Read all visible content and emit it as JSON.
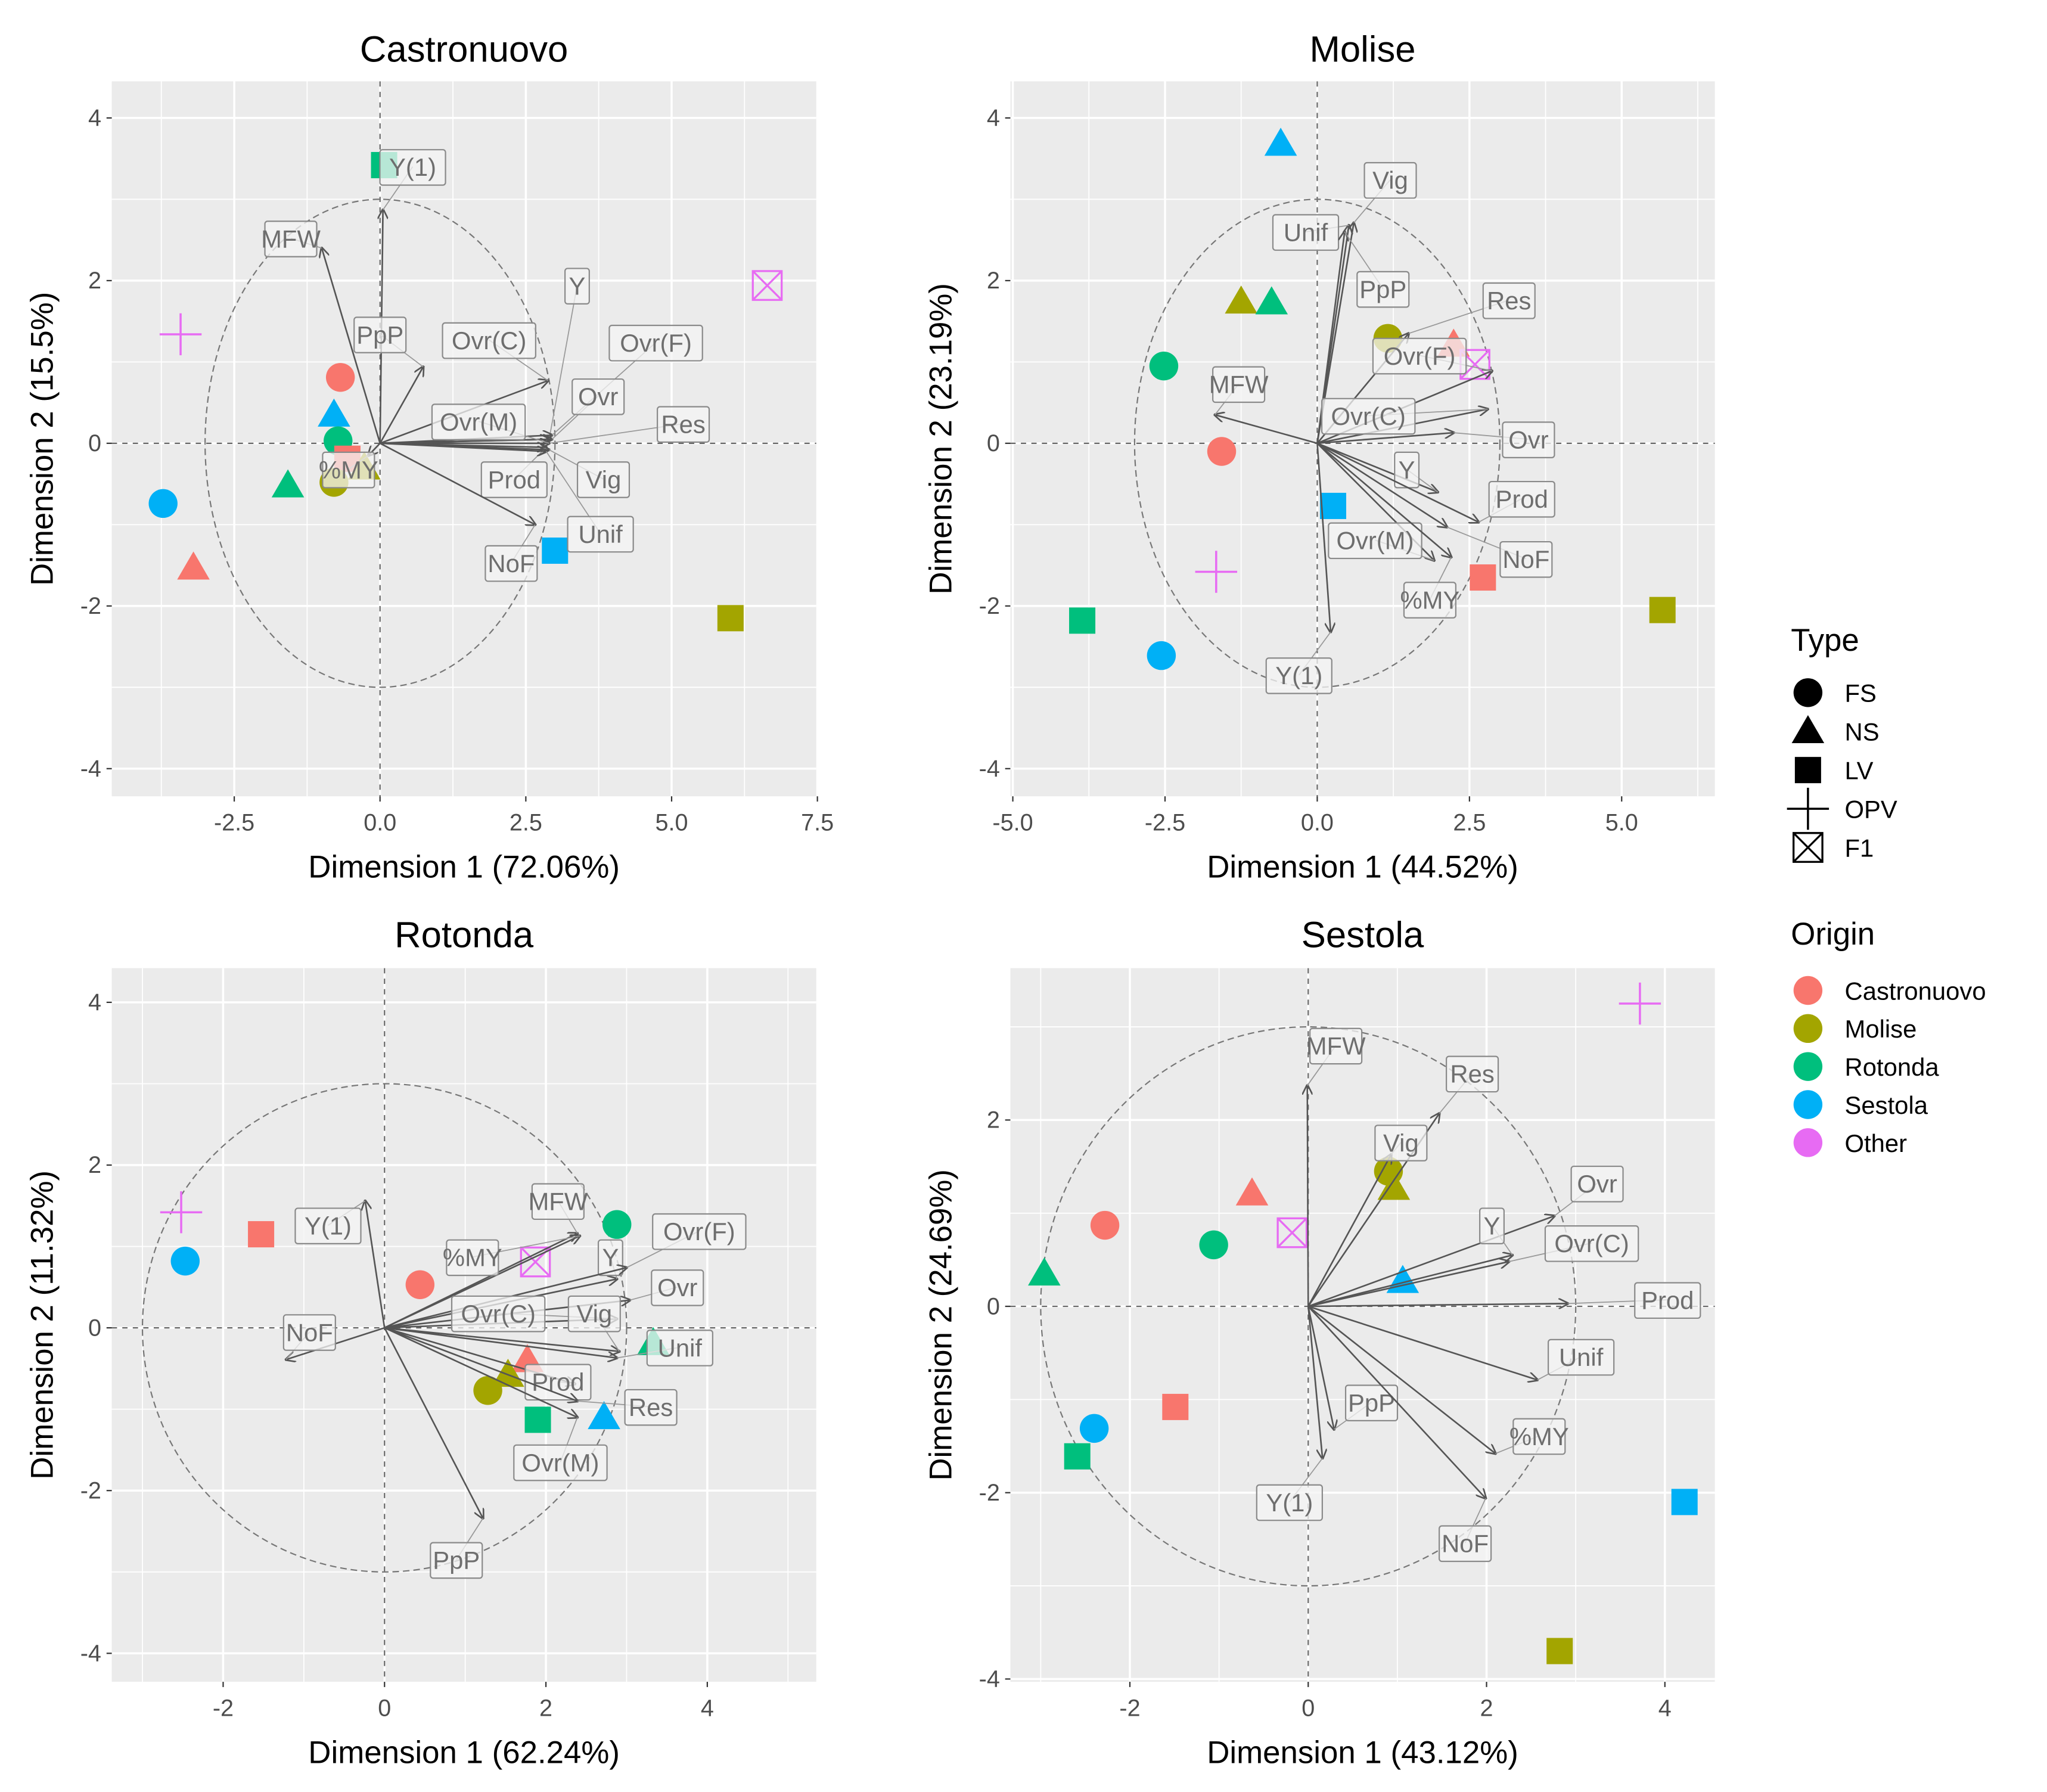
{
  "colors": {
    "Castronuovo": "#F8766D",
    "Molise": "#A3A500",
    "Rotonda": "#00BF7D",
    "Sestola": "#00B0F6",
    "Other": "#E76BF3"
  },
  "legend": {
    "type_title": "Type",
    "types": [
      "FS",
      "NS",
      "LV",
      "OPV",
      "F1"
    ],
    "origin_title": "Origin",
    "origins": [
      "Castronuovo",
      "Molise",
      "Rotonda",
      "Sestola",
      "Other"
    ]
  },
  "chart_data": [
    {
      "type": "scatter",
      "title": "Castronuovo",
      "xlabel": "Dimension 1 (72.06%)",
      "ylabel": "Dimension 2 (15.5%)",
      "xlim": [
        -4.6,
        7.48
      ],
      "ylim": [
        -4.34,
        4.45
      ],
      "x_ticks": [
        -2.5,
        0,
        2.5,
        5,
        7.5
      ],
      "x_tick_labels": [
        "-2.5",
        "0.0",
        "2.5",
        "5.0",
        "7.5"
      ],
      "y_ticks": [
        -4,
        -2,
        0,
        2,
        4
      ],
      "y_tick_labels": [
        "-4",
        "-2",
        "0",
        "2",
        "4"
      ],
      "circle_radius": 3,
      "points": [
        {
          "origin": "Castronuovo",
          "type": "FS",
          "x": -0.68,
          "y": 0.81
        },
        {
          "origin": "Sestola",
          "type": "NS",
          "x": -0.79,
          "y": 0.35
        },
        {
          "origin": "Rotonda",
          "type": "FS",
          "x": -0.72,
          "y": 0.03
        },
        {
          "origin": "Castronuovo",
          "type": "LV",
          "x": -0.56,
          "y": -0.19
        },
        {
          "origin": "Molise",
          "type": "NS",
          "x": -0.27,
          "y": -0.3
        },
        {
          "origin": "Molise",
          "type": "FS",
          "x": -0.79,
          "y": -0.48
        },
        {
          "origin": "Rotonda",
          "type": "NS",
          "x": -1.58,
          "y": -0.52
        },
        {
          "origin": "Sestola",
          "type": "FS",
          "x": -3.72,
          "y": -0.74
        },
        {
          "origin": "Castronuovo",
          "type": "NS",
          "x": -3.2,
          "y": -1.53
        },
        {
          "origin": "Other",
          "type": "OPV",
          "x": -3.42,
          "y": 1.34
        },
        {
          "origin": "Other",
          "type": "F1",
          "x": 6.64,
          "y": 1.94
        },
        {
          "origin": "Rotonda",
          "type": "LV",
          "x": 0.07,
          "y": 3.42
        },
        {
          "origin": "Sestola",
          "type": "LV",
          "x": 3.0,
          "y": -1.32
        },
        {
          "origin": "Molise",
          "type": "LV",
          "x": 6.01,
          "y": -2.15
        }
      ],
      "vectors": [
        {
          "label": "Y(1)",
          "x": 0.05,
          "y": 2.87,
          "label_x": 0.56,
          "label_y": 3.4
        },
        {
          "label": "MFW",
          "x": -1.0,
          "y": 2.4,
          "label_x": -1.53,
          "label_y": 2.52
        },
        {
          "label": "PpP",
          "x": 0.74,
          "y": 0.94,
          "label_x": 0.0,
          "label_y": 1.34
        },
        {
          "label": "Ovr(C)",
          "x": 2.88,
          "y": 0.77,
          "label_x": 1.87,
          "label_y": 1.27
        },
        {
          "label": "Y",
          "x": 2.9,
          "y": 0.05,
          "label_x": 3.38,
          "label_y": 1.94
        },
        {
          "label": "Ovr(F)",
          "x": 2.95,
          "y": 0.1,
          "label_x": 4.73,
          "label_y": 1.24
        },
        {
          "label": "Ovr",
          "x": 2.95,
          "y": 0.05,
          "label_x": 3.74,
          "label_y": 0.58
        },
        {
          "label": "Res",
          "x": 2.9,
          "y": 0.0,
          "label_x": 5.2,
          "label_y": 0.24
        },
        {
          "label": "Ovr(M)",
          "x": 2.9,
          "y": 0.0,
          "label_x": 1.69,
          "label_y": 0.27
        },
        {
          "label": "Prod",
          "x": 2.85,
          "y": -0.05,
          "label_x": 2.3,
          "label_y": -0.44
        },
        {
          "label": "Vig",
          "x": 2.9,
          "y": -0.08,
          "label_x": 3.83,
          "label_y": -0.44
        },
        {
          "label": "Unif",
          "x": 2.85,
          "y": -0.1,
          "label_x": 3.78,
          "label_y": -1.11
        },
        {
          "label": "NoF",
          "x": 2.66,
          "y": -1.0,
          "label_x": 2.25,
          "label_y": -1.47
        },
        {
          "label": "%MY",
          "x": -0.2,
          "y": -0.15,
          "label_x": -0.54,
          "label_y": -0.32
        }
      ]
    },
    {
      "type": "scatter",
      "title": "Molise",
      "xlabel": "Dimension 1 (44.52%)",
      "ylabel": "Dimension 2 (23.19%)",
      "xlim": [
        -5.04,
        6.53
      ],
      "ylim": [
        -4.34,
        4.45
      ],
      "x_ticks": [
        -5,
        -2.5,
        0,
        2.5,
        5
      ],
      "x_tick_labels": [
        "-5.0",
        "-2.5",
        "0.0",
        "2.5",
        "5.0"
      ],
      "y_ticks": [
        -4,
        -2,
        0,
        2,
        4
      ],
      "y_tick_labels": [
        "-4",
        "-2",
        "0",
        "2",
        "4"
      ],
      "circle_radius": 3,
      "points": [
        {
          "origin": "Sestola",
          "type": "NS",
          "x": -0.6,
          "y": 3.68
        },
        {
          "origin": "Molise",
          "type": "NS",
          "x": -1.25,
          "y": 1.74
        },
        {
          "origin": "Rotonda",
          "type": "NS",
          "x": -0.75,
          "y": 1.73
        },
        {
          "origin": "Rotonda",
          "type": "FS",
          "x": -2.52,
          "y": 0.95
        },
        {
          "origin": "Molise",
          "type": "FS",
          "x": 1.16,
          "y": 1.29
        },
        {
          "origin": "Castronuovo",
          "type": "NS",
          "x": 2.24,
          "y": 1.21
        },
        {
          "origin": "Other",
          "type": "F1",
          "x": 2.59,
          "y": 0.97
        },
        {
          "origin": "Castronuovo",
          "type": "FS",
          "x": -1.57,
          "y": -0.1
        },
        {
          "origin": "Sestola",
          "type": "LV",
          "x": 0.26,
          "y": -0.77
        },
        {
          "origin": "Other",
          "type": "OPV",
          "x": -1.66,
          "y": -1.58
        },
        {
          "origin": "Castronuovo",
          "type": "LV",
          "x": 2.72,
          "y": -1.65
        },
        {
          "origin": "Molise",
          "type": "LV",
          "x": 5.67,
          "y": -2.05
        },
        {
          "origin": "Rotonda",
          "type": "LV",
          "x": -3.86,
          "y": -2.18
        },
        {
          "origin": "Sestola",
          "type": "FS",
          "x": -2.56,
          "y": -2.61
        }
      ],
      "vectors": [
        {
          "label": "Vig",
          "x": 0.6,
          "y": 2.71,
          "label_x": 1.2,
          "label_y": 3.24
        },
        {
          "label": "Unif",
          "x": 0.52,
          "y": 2.68,
          "label_x": -0.19,
          "label_y": 2.6
        },
        {
          "label": "PpP",
          "x": 0.45,
          "y": 2.6,
          "label_x": 1.08,
          "label_y": 1.9
        },
        {
          "label": "Res",
          "x": 1.5,
          "y": 1.35,
          "label_x": 3.15,
          "label_y": 1.76
        },
        {
          "label": "Ovr(F)",
          "x": 2.87,
          "y": 0.89,
          "label_x": 1.68,
          "label_y": 1.08
        },
        {
          "label": "Ovr(C)",
          "x": 2.8,
          "y": 0.42,
          "label_x": 0.84,
          "label_y": 0.34
        },
        {
          "label": "Ovr",
          "x": 2.24,
          "y": 0.13,
          "label_x": 3.47,
          "label_y": 0.05
        },
        {
          "label": "Y",
          "x": 1.98,
          "y": -0.6,
          "label_x": 1.47,
          "label_y": -0.32
        },
        {
          "label": "Prod",
          "x": 2.65,
          "y": -0.97,
          "label_x": 3.36,
          "label_y": -0.68
        },
        {
          "label": "Ovr(M)",
          "x": 1.92,
          "y": -1.44,
          "label_x": 0.95,
          "label_y": -1.19
        },
        {
          "label": "NoF",
          "x": 2.13,
          "y": -1.03,
          "label_x": 3.43,
          "label_y": -1.42
        },
        {
          "label": "%MY",
          "x": 2.2,
          "y": -1.4,
          "label_x": 1.85,
          "label_y": -1.92
        },
        {
          "label": "MFW",
          "x": -1.68,
          "y": 0.35,
          "label_x": -1.29,
          "label_y": 0.73
        },
        {
          "label": "Y(1)",
          "x": 0.22,
          "y": -2.32,
          "label_x": -0.3,
          "label_y": -2.85
        }
      ]
    },
    {
      "type": "scatter",
      "title": "Rotonda",
      "xlabel": "Dimension 1 (62.24%)",
      "ylabel": "Dimension 2 (11.32%)",
      "xlim": [
        -3.38,
        5.35
      ],
      "ylim": [
        -4.35,
        4.42
      ],
      "x_ticks": [
        -2,
        0,
        2,
        4
      ],
      "x_tick_labels": [
        "-2",
        "0",
        "2",
        "4"
      ],
      "y_ticks": [
        -4,
        -2,
        0,
        2,
        4
      ],
      "y_tick_labels": [
        "-4",
        "-2",
        "0",
        "2",
        "4"
      ],
      "circle_radius": 3,
      "points": [
        {
          "origin": "Other",
          "type": "OPV",
          "x": -2.52,
          "y": 1.42
        },
        {
          "origin": "Sestola",
          "type": "FS",
          "x": -2.47,
          "y": 0.82
        },
        {
          "origin": "Castronuovo",
          "type": "LV",
          "x": -1.53,
          "y": 1.15
        },
        {
          "origin": "Castronuovo",
          "type": "FS",
          "x": 0.44,
          "y": 0.53
        },
        {
          "origin": "Other",
          "type": "F1",
          "x": 1.87,
          "y": 0.81
        },
        {
          "origin": "Rotonda",
          "type": "FS",
          "x": 2.88,
          "y": 1.27
        },
        {
          "origin": "Rotonda",
          "type": "NS",
          "x": 3.33,
          "y": -0.19
        },
        {
          "origin": "Castronuovo",
          "type": "NS",
          "x": 1.77,
          "y": -0.4
        },
        {
          "origin": "Molise",
          "type": "NS",
          "x": 1.53,
          "y": -0.58
        },
        {
          "origin": "Molise",
          "type": "FS",
          "x": 1.28,
          "y": -0.77
        },
        {
          "origin": "Rotonda",
          "type": "LV",
          "x": 1.9,
          "y": -1.13
        },
        {
          "origin": "Sestola",
          "type": "NS",
          "x": 2.72,
          "y": -1.1
        }
      ],
      "vectors": [
        {
          "label": "Y(1)",
          "x": -0.24,
          "y": 1.56,
          "label_x": -0.7,
          "label_y": 1.26
        },
        {
          "label": "NoF",
          "x": -1.22,
          "y": -0.39,
          "label_x": -0.93,
          "label_y": -0.05
        },
        {
          "label": "PpP",
          "x": 1.22,
          "y": -2.34,
          "label_x": 0.89,
          "label_y": -2.85
        },
        {
          "label": "MFW",
          "x": 2.39,
          "y": 1.16,
          "label_x": 2.15,
          "label_y": 1.56
        },
        {
          "label": "%MY",
          "x": 2.42,
          "y": 1.13,
          "label_x": 1.09,
          "label_y": 0.87
        },
        {
          "label": "Y",
          "x": 2.88,
          "y": 0.6,
          "label_x": 2.8,
          "label_y": 0.87
        },
        {
          "label": "Ovr(F)",
          "x": 3.0,
          "y": 0.74,
          "label_x": 3.9,
          "label_y": 1.19
        },
        {
          "label": "Ovr",
          "x": 3.04,
          "y": 0.34,
          "label_x": 3.63,
          "label_y": 0.5
        },
        {
          "label": "Ovr(C)",
          "x": 2.88,
          "y": 0.11,
          "label_x": 1.41,
          "label_y": 0.18
        },
        {
          "label": "Vig",
          "x": 2.91,
          "y": -0.29,
          "label_x": 2.6,
          "label_y": 0.18
        },
        {
          "label": "Unif",
          "x": 2.88,
          "y": -0.37,
          "label_x": 3.66,
          "label_y": -0.24
        },
        {
          "label": "Prod",
          "x": 2.36,
          "y": -0.69,
          "label_x": 2.15,
          "label_y": -0.66
        },
        {
          "label": "Res",
          "x": 2.39,
          "y": -0.9,
          "label_x": 3.3,
          "label_y": -0.97
        },
        {
          "label": "Ovr(M)",
          "x": 2.39,
          "y": -1.1,
          "label_x": 2.18,
          "label_y": -1.65
        }
      ]
    },
    {
      "type": "scatter",
      "title": "Sestola",
      "xlabel": "Dimension 1 (43.12%)",
      "ylabel": "Dimension 2 (24.69%)",
      "xlim": [
        -3.34,
        4.56
      ],
      "ylim": [
        -4.03,
        3.63
      ],
      "x_ticks": [
        -2,
        0,
        2,
        4
      ],
      "x_tick_labels": [
        "-2",
        "0",
        "2",
        "4"
      ],
      "y_ticks": [
        -4,
        -2,
        0,
        2
      ],
      "y_tick_labels": [
        "-4",
        "-2",
        "0",
        "2"
      ],
      "circle_radius": 3,
      "points": [
        {
          "origin": "Other",
          "type": "OPV",
          "x": 3.72,
          "y": 3.25
        },
        {
          "origin": "Molise",
          "type": "FS",
          "x": 0.9,
          "y": 1.45
        },
        {
          "origin": "Molise",
          "type": "NS",
          "x": 0.96,
          "y": 1.27
        },
        {
          "origin": "Castronuovo",
          "type": "NS",
          "x": -0.63,
          "y": 1.21
        },
        {
          "origin": "Castronuovo",
          "type": "FS",
          "x": -2.28,
          "y": 0.87
        },
        {
          "origin": "Rotonda",
          "type": "FS",
          "x": -1.06,
          "y": 0.66
        },
        {
          "origin": "Other",
          "type": "F1",
          "x": -0.18,
          "y": 0.79
        },
        {
          "origin": "Rotonda",
          "type": "NS",
          "x": -2.96,
          "y": 0.35
        },
        {
          "origin": "Sestola",
          "type": "NS",
          "x": 1.06,
          "y": 0.27
        },
        {
          "origin": "Castronuovo",
          "type": "LV",
          "x": -1.49,
          "y": -1.08
        },
        {
          "origin": "Sestola",
          "type": "FS",
          "x": -2.4,
          "y": -1.31
        },
        {
          "origin": "Rotonda",
          "type": "LV",
          "x": -2.59,
          "y": -1.61
        },
        {
          "origin": "Sestola",
          "type": "LV",
          "x": 4.22,
          "y": -2.1
        },
        {
          "origin": "Molise",
          "type": "LV",
          "x": 2.82,
          "y": -3.7
        }
      ],
      "vectors": [
        {
          "label": "MFW",
          "x": -0.01,
          "y": 2.37,
          "label_x": 0.31,
          "label_y": 2.8
        },
        {
          "label": "Res",
          "x": 1.47,
          "y": 2.07,
          "label_x": 1.84,
          "label_y": 2.5
        },
        {
          "label": "Vig",
          "x": 0.93,
          "y": 1.63,
          "label_x": 1.04,
          "label_y": 1.76
        },
        {
          "label": "Ovr",
          "x": 2.76,
          "y": 0.97,
          "label_x": 3.24,
          "label_y": 1.32
        },
        {
          "label": "Y",
          "x": 2.29,
          "y": 0.55,
          "label_x": 2.06,
          "label_y": 0.87
        },
        {
          "label": "Ovr(C)",
          "x": 2.25,
          "y": 0.48,
          "label_x": 3.18,
          "label_y": 0.68
        },
        {
          "label": "Prod",
          "x": 2.91,
          "y": 0.03,
          "label_x": 4.03,
          "label_y": 0.07
        },
        {
          "label": "Unif",
          "x": 2.57,
          "y": -0.79,
          "label_x": 3.06,
          "label_y": -0.54
        },
        {
          "label": "PpP",
          "x": 0.29,
          "y": -1.32,
          "label_x": 0.71,
          "label_y": -1.03
        },
        {
          "label": "%MY",
          "x": 2.1,
          "y": -1.58,
          "label_x": 2.59,
          "label_y": -1.39
        },
        {
          "label": "NoF",
          "x": 1.99,
          "y": -2.06,
          "label_x": 1.76,
          "label_y": -2.54
        },
        {
          "label": "Y(1)",
          "x": 0.16,
          "y": -1.63,
          "label_x": -0.21,
          "label_y": -2.1
        }
      ]
    }
  ]
}
